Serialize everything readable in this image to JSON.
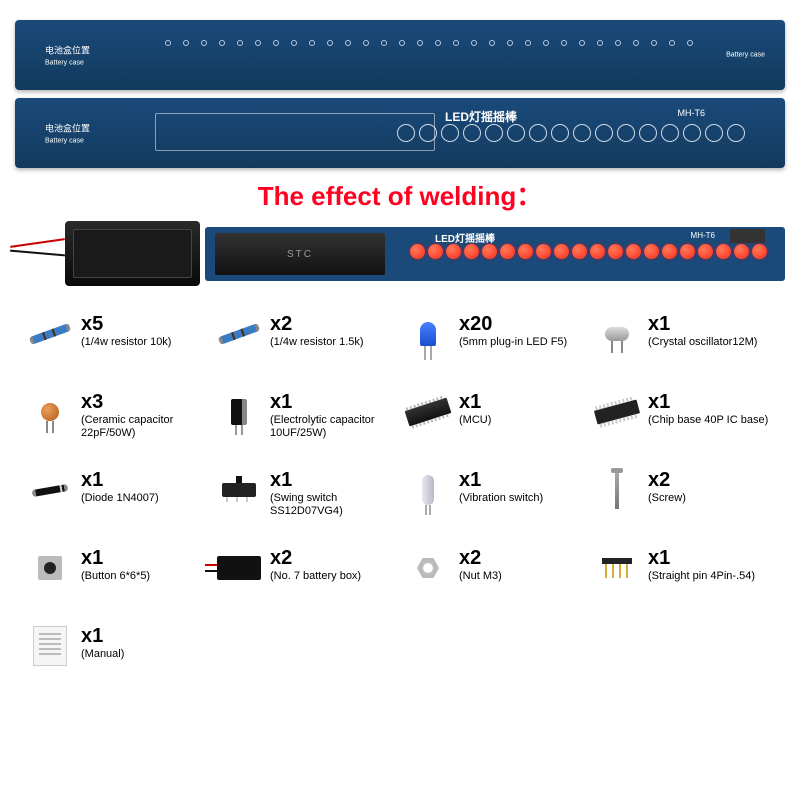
{
  "colors": {
    "pcb_blue": "#1a4a7a",
    "pcb_blue_dark": "#123a5e",
    "title_red": "#ff0020",
    "led_red": "#ff2a1a"
  },
  "pcb": {
    "left_label_cn": "电池盒位置",
    "left_label_en": "Battery case",
    "center_text": "LED灯摇摇棒",
    "model": "MH-T6",
    "dots_count": 30,
    "circles_count": 16
  },
  "welding_title": "The effect of welding：",
  "assembled": {
    "chip_label": "STC",
    "label": "LED灯摇摇棒",
    "model": "MH-T6",
    "led_count": 20
  },
  "parts": [
    {
      "icon": "resistor",
      "qty": "x5",
      "desc": "(1/4w resistor 10k)"
    },
    {
      "icon": "resistor",
      "qty": "x2",
      "desc": "(1/4w resistor 1.5k)"
    },
    {
      "icon": "led-comp",
      "qty": "x20",
      "desc": "(5mm plug-in LED F5)"
    },
    {
      "icon": "crystal",
      "qty": "x1",
      "desc": "(Crystal oscillator12M)"
    },
    {
      "icon": "ceramic",
      "qty": "x3",
      "desc": "(Ceramic capacitor 22pF/50W)"
    },
    {
      "icon": "electrolytic",
      "qty": "x1",
      "desc": "(Electrolytic capacitor 10UF/25W)"
    },
    {
      "icon": "mcu",
      "qty": "x1",
      "desc": "(MCU)"
    },
    {
      "icon": "icbase",
      "qty": "x1",
      "desc": "(Chip base 40P IC base)"
    },
    {
      "icon": "diode",
      "qty": "x1",
      "desc": "(Diode 1N4007)"
    },
    {
      "icon": "switch",
      "qty": "x1",
      "desc": "(Swing switch SS12D07VG4)"
    },
    {
      "icon": "vibration",
      "qty": "x1",
      "desc": "(Vibration switch)"
    },
    {
      "icon": "screw",
      "qty": "x2",
      "desc": "(Screw)"
    },
    {
      "icon": "button",
      "qty": "x1",
      "desc": "(Button 6*6*5)"
    },
    {
      "icon": "battbox",
      "qty": "x2",
      "desc": "(No. 7 battery box)"
    },
    {
      "icon": "nut",
      "qty": "x2",
      "desc": "(Nut M3)"
    },
    {
      "icon": "pins",
      "qty": "x1",
      "desc": "(Straight pin 4Pin-.54)"
    },
    {
      "icon": "manual",
      "qty": "x1",
      "desc": "(Manual)"
    }
  ]
}
